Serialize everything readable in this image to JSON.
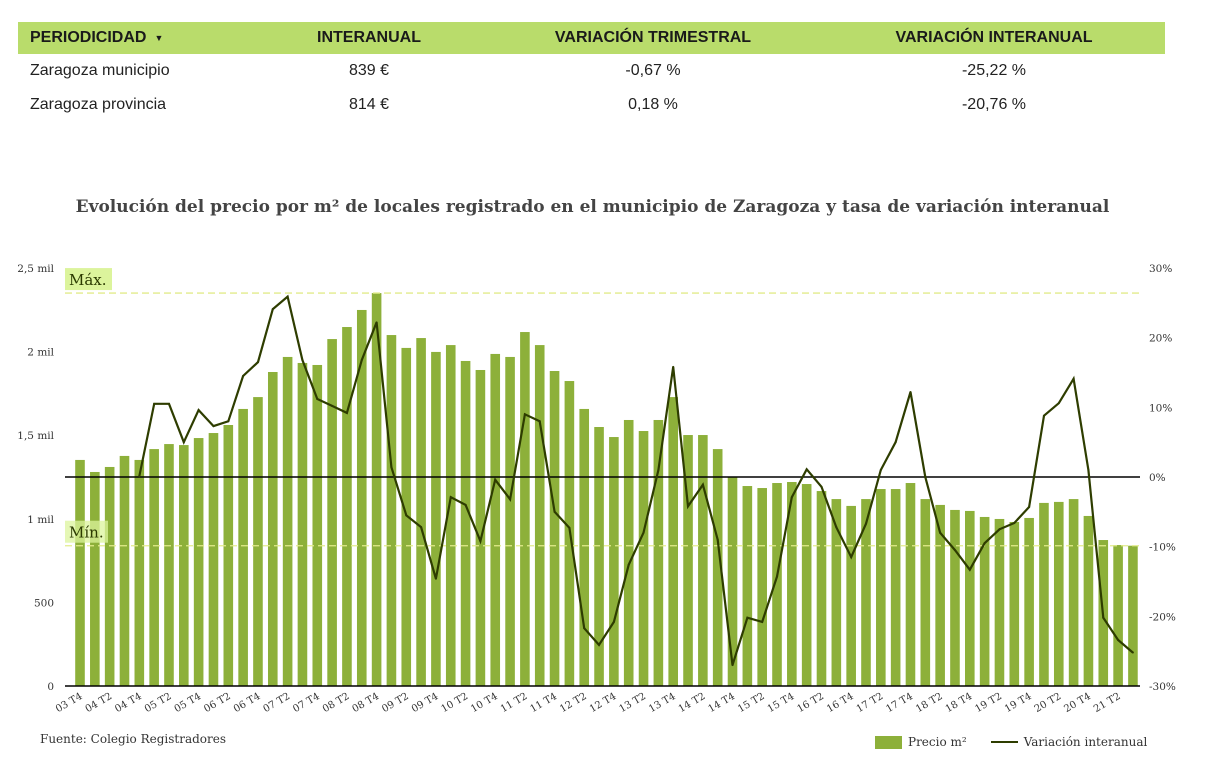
{
  "table": {
    "headers": [
      "PERIODICIDAD",
      "INTERANUAL",
      "VARIACIÓN TRIMESTRAL",
      "VARIACIÓN INTERANUAL"
    ],
    "rows": [
      [
        "Zaragoza municipio",
        "839 €",
        "-0,67 %",
        "-25,22 %"
      ],
      [
        "Zaragoza provincia",
        "814 €",
        "0,18 %",
        "-20,76 %"
      ]
    ]
  },
  "source": "Fuente: Colegio Registradores",
  "colors": {
    "bar": "#8db03a",
    "line": "#2e3d00",
    "header": "#b9dc6b",
    "ref_line": "#e2ec8c",
    "ref_label_bg": "#dcf49c"
  },
  "chart_data": {
    "type": "bar+line",
    "title": "Evolución del precio por m² de locales registrado en el municipio de Zaragoza y tasa de variación interanual",
    "left_axis": {
      "ylim": [
        0,
        2500
      ],
      "ticks": [
        "0",
        "500",
        "1 mil",
        "1,5 mil",
        "2 mil",
        "2,5 mil"
      ],
      "tick_values": [
        0,
        500,
        1000,
        1500,
        2000,
        2500
      ]
    },
    "right_axis": {
      "ylim": [
        -30,
        30
      ],
      "ticks": [
        "-30%",
        "-20%",
        "-10%",
        "0%",
        "10%",
        "20%",
        "30%"
      ],
      "tick_values": [
        -30,
        -20,
        -10,
        0,
        10,
        20,
        30
      ]
    },
    "annotations": {
      "max_label": "Máx.",
      "max_value": 2350,
      "min_label": "Mín.",
      "min_value": 839
    },
    "categories": [
      "03 T4",
      "04 T1",
      "04 T2",
      "04 T3",
      "04 T4",
      "05 T1",
      "05 T2",
      "05 T3",
      "05 T4",
      "06 T1",
      "06 T2",
      "06 T3",
      "06 T4",
      "07 T1",
      "07 T2",
      "07 T3",
      "07 T4",
      "08 T1",
      "08 T2",
      "08 T3",
      "08 T4",
      "09 T1",
      "09 T2",
      "09 T3",
      "09 T4",
      "10 T1",
      "10 T2",
      "10 T3",
      "10 T4",
      "11 T1",
      "11 T2",
      "11 T3",
      "11 T4",
      "12 T1",
      "12 T2",
      "12 T3",
      "12 T4",
      "13 T1",
      "13 T2",
      "13 T3",
      "13 T4",
      "14 T1",
      "14 T2",
      "14 T3",
      "14 T4",
      "15 T1",
      "15 T2",
      "15 T3",
      "15 T4",
      "16 T1",
      "16 T2",
      "16 T3",
      "16 T4",
      "17 T1",
      "17 T2",
      "17 T3",
      "17 T4",
      "18 T1",
      "18 T2",
      "18 T3",
      "18 T4",
      "19 T1",
      "19 T2",
      "19 T3",
      "19 T4",
      "20 T1",
      "20 T2",
      "20 T3",
      "20 T4",
      "21 T1",
      "21 T2",
      "21 T3"
    ],
    "series": [
      {
        "name": "Precio m²",
        "type": "bar",
        "axis": "left",
        "values": [
          1352,
          1280,
          1310,
          1376,
          1352,
          1417,
          1447,
          1441,
          1483,
          1513,
          1561,
          1657,
          1728,
          1878,
          1968,
          1932,
          1920,
          2075,
          2147,
          2249,
          2350,
          2099,
          2022,
          2081,
          1998,
          2039,
          1944,
          1890,
          1986,
          1968,
          2117,
          2039,
          1884,
          1824,
          1657,
          1549,
          1489,
          1591,
          1525,
          1591,
          1728,
          1501,
          1501,
          1417,
          1250,
          1196,
          1184,
          1214,
          1220,
          1208,
          1166,
          1118,
          1077,
          1118,
          1178,
          1178,
          1214,
          1118,
          1083,
          1053,
          1047,
          1011,
          999,
          981,
          1005,
          1095,
          1101,
          1118,
          1017,
          873,
          843,
          839
        ]
      },
      {
        "name": "Variación interanual",
        "type": "line",
        "axis": "right",
        "values": [
          null,
          null,
          null,
          null,
          0.1,
          10.5,
          10.5,
          5.0,
          9.6,
          7.3,
          8.0,
          14.5,
          16.5,
          24.1,
          25.9,
          16.8,
          11.2,
          10.2,
          9.2,
          16.8,
          22.2,
          1.4,
          -5.5,
          -7.2,
          -14.6,
          -2.9,
          -4.0,
          -9.2,
          -0.4,
          -3.2,
          9.0,
          8.0,
          -5.0,
          -7.3,
          -21.7,
          -24.1,
          -20.8,
          -12.6,
          -8.0,
          1.0,
          15.8,
          -4.2,
          -1.1,
          -9.0,
          -27.0,
          -20.2,
          -20.8,
          -14.3,
          -2.9,
          1.1,
          -1.4,
          -7.2,
          -11.5,
          -6.7,
          1.0,
          5.0,
          12.2,
          0.0,
          -8.0,
          -10.5,
          -13.3,
          -9.5,
          -7.5,
          -6.6,
          -4.3,
          8.8,
          10.6,
          14.1,
          1.0,
          -20.2,
          -23.4,
          -25.2
        ]
      }
    ],
    "legend": {
      "position": "bottom-right",
      "entries": [
        "Precio m²",
        "Variación interanual"
      ]
    }
  }
}
